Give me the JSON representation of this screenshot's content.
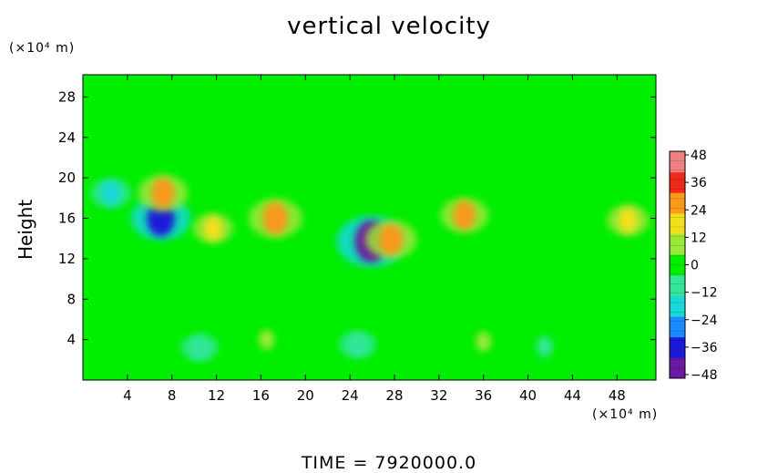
{
  "title": "vertical velocity",
  "y_unit": "(×10⁴ m)",
  "x_unit": "(×10⁴ m)",
  "footer": "TIME  =  7920000.0",
  "chart_data": {
    "type": "heatmap",
    "title": "vertical velocity",
    "xlabel": "",
    "ylabel": "Height",
    "x_unit": "×10⁴ m",
    "y_unit": "×10⁴ m",
    "xlim": [
      0,
      51.5
    ],
    "ylim": [
      0,
      30.2
    ],
    "x_ticks": [
      4,
      8,
      12,
      16,
      20,
      24,
      28,
      32,
      36,
      40,
      44,
      48
    ],
    "y_ticks": [
      4,
      8,
      12,
      16,
      20,
      24,
      28
    ],
    "colorbar": {
      "ticks": [
        48,
        36,
        24,
        12,
        0,
        -12,
        -24,
        -36,
        -48
      ],
      "range": [
        -48,
        48
      ],
      "colors": [
        "#6a1a9e",
        "#1a1ad8",
        "#1a8cff",
        "#19d8d8",
        "#33e699",
        "#00ee00",
        "#9ae83a",
        "#f0e01c",
        "#f89a1c",
        "#f02a1a",
        "#f08080"
      ]
    },
    "background_value": 0,
    "features": [
      {
        "x": 25.9,
        "y": 13.7,
        "value": -44
      },
      {
        "x": 7.0,
        "y": 16.0,
        "value": -34
      },
      {
        "x": 27.7,
        "y": 13.9,
        "value": 26
      },
      {
        "x": 7.2,
        "y": 18.5,
        "value": 24
      },
      {
        "x": 17.3,
        "y": 16.0,
        "value": 28
      },
      {
        "x": 34.3,
        "y": 16.3,
        "value": 22
      },
      {
        "x": 49.0,
        "y": 15.8,
        "value": 16
      },
      {
        "x": 11.7,
        "y": 15.0,
        "value": 14
      },
      {
        "x": 2.5,
        "y": 18.5,
        "value": -14
      },
      {
        "x": 10.5,
        "y": 3.2,
        "value": -10
      },
      {
        "x": 24.7,
        "y": 3.5,
        "value": -10
      },
      {
        "x": 41.5,
        "y": 3.3,
        "value": -8
      },
      {
        "x": 16.5,
        "y": 4.0,
        "value": 6
      },
      {
        "x": 36.0,
        "y": 3.8,
        "value": 6
      }
    ]
  }
}
